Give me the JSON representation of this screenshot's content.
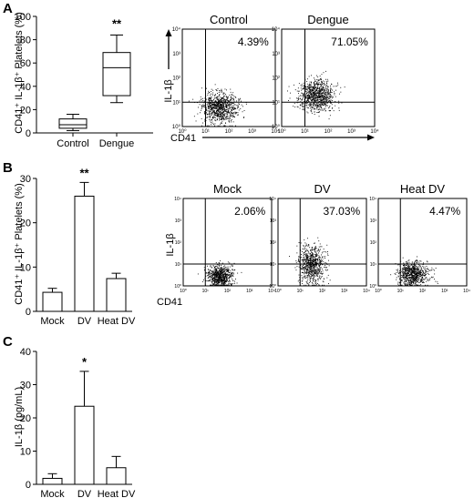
{
  "panels": {
    "A": {
      "label": "A"
    },
    "B": {
      "label": "B"
    },
    "C": {
      "label": "C"
    }
  },
  "chart_data": [
    {
      "id": "A-box",
      "type": "box",
      "panel": "A",
      "ylabel": "CD41⁺ IL-1β⁺ Platelets (%)",
      "ylim": [
        0,
        100
      ],
      "yticks": [
        0,
        20,
        40,
        60,
        80,
        100
      ],
      "categories": [
        "Control",
        "Dengue"
      ],
      "boxes": [
        {
          "category": "Control",
          "min": 2,
          "q1": 4,
          "median": 7,
          "q3": 12,
          "max": 16
        },
        {
          "category": "Dengue",
          "min": 26,
          "q1": 32,
          "median": 56,
          "q3": 69,
          "max": 84
        }
      ],
      "annotations": [
        {
          "category": "Dengue",
          "text": "**"
        }
      ]
    },
    {
      "id": "B-bar",
      "type": "bar",
      "panel": "B",
      "ylabel": "CD41⁺ IL-1β⁺ Platelets (%)",
      "ylim": [
        0,
        30
      ],
      "yticks": [
        0,
        10,
        20,
        30
      ],
      "categories": [
        "Mock",
        "DV",
        "Heat DV"
      ],
      "values": [
        4.3,
        26.0,
        7.4
      ],
      "errors": [
        0.9,
        3.1,
        1.2
      ],
      "annotations": [
        {
          "category": "DV",
          "text": "**"
        }
      ]
    },
    {
      "id": "C-bar",
      "type": "bar",
      "panel": "C",
      "ylabel": "IL-1β (pg/mL)",
      "ylim": [
        0,
        40
      ],
      "yticks": [
        0,
        10,
        20,
        30,
        40
      ],
      "categories": [
        "Mock",
        "DV",
        "Heat DV"
      ],
      "values": [
        1.8,
        23.5,
        5.0
      ],
      "errors": [
        1.4,
        10.5,
        3.4
      ],
      "annotations": [
        {
          "category": "DV",
          "text": "*"
        }
      ]
    },
    {
      "id": "A-flow",
      "type": "scatter",
      "panel": "A",
      "xlabel": "CD41",
      "ylabel": "IL-1β",
      "log_scale": true,
      "ticks": [
        "10⁰",
        "10¹",
        "10²",
        "10³",
        "10⁴"
      ],
      "gate_decade": 1,
      "grid": false,
      "plots": [
        {
          "title": "Control",
          "percent": "4.39%",
          "center": [
            1.6,
            0.8
          ],
          "spread": [
            0.38,
            0.3
          ]
        },
        {
          "title": "Dengue",
          "percent": "71.05%",
          "center": [
            1.5,
            1.3
          ],
          "spread": [
            0.38,
            0.32
          ]
        }
      ]
    },
    {
      "id": "B-flow",
      "type": "scatter",
      "panel": "B",
      "xlabel": "CD41",
      "ylabel": "IL-1β",
      "log_scale": true,
      "ticks": [
        "10⁰",
        "10¹",
        "10²",
        "10³",
        "10⁴"
      ],
      "gate_decade": 1,
      "grid": false,
      "plots": [
        {
          "title": "Mock",
          "percent": "2.06%",
          "center": [
            1.65,
            0.45
          ],
          "spread": [
            0.3,
            0.25
          ]
        },
        {
          "title": "DV",
          "percent": "37.03%",
          "center": [
            1.5,
            1.0
          ],
          "spread": [
            0.3,
            0.45
          ]
        },
        {
          "title": "Heat DV",
          "percent": "4.47%",
          "center": [
            1.55,
            0.55
          ],
          "spread": [
            0.35,
            0.28
          ]
        }
      ]
    }
  ]
}
